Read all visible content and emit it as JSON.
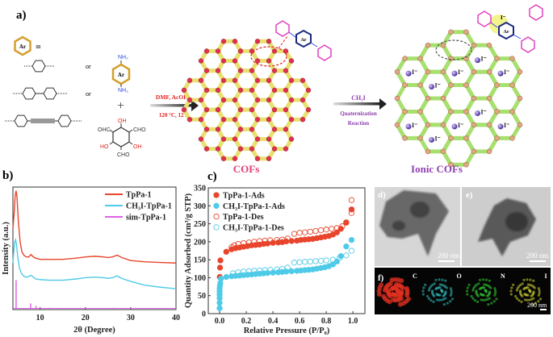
{
  "panels": {
    "a": "a)",
    "b": "b)",
    "c": "c)",
    "d": "d)",
    "e": "e)",
    "f": "f)"
  },
  "scheme": {
    "ar_label": "Ar",
    "equals": "=",
    "or_1": "or",
    "or_2": "or",
    "amine_top": "NH₂",
    "amine_bottom": "NH₂",
    "plus": "+",
    "aldehyde_groups": {
      "top": "OH",
      "left_top": "OHC",
      "right_top": "CHO",
      "left_bottom": "HO",
      "right_bottom": "OH",
      "bottom": "CHO"
    },
    "step1_reagent": "DMF, AcOH",
    "step1_conditions": "120 °C, 12 h",
    "step2_reagent": "CH₃I",
    "step2_line1": "Quaternization",
    "step2_line2": "Reaction",
    "cof_label": "COFs",
    "ionic_cof_label": "Ionic COFs",
    "iodide": "I⁻",
    "colors": {
      "ar": "#d4a030",
      "amine": "#3050e0",
      "hydroxyl": "#e02020",
      "cof_node": "#e03050",
      "cof_linker": "#e8e070",
      "ionic_node": "#e0a880",
      "ionic_linker": "#a8e070",
      "cof_title": "#e0407a",
      "ionic_title": "#9040b0",
      "iodide_dot": "#5030a0"
    }
  },
  "tem": {
    "scale_d": "200 nm",
    "scale_e": "200 nm",
    "scale_f": "200 nm",
    "elements": [
      "C",
      "O",
      "N",
      "I"
    ],
    "element_colors": [
      "#e03020",
      "#30b0b0",
      "#30c030",
      "#c0c030"
    ]
  },
  "chart_data": [
    {
      "type": "line",
      "title": "",
      "xlabel": "2θ (Degree)",
      "ylabel": "Intensity (a.u.)",
      "xlim": [
        4,
        40
      ],
      "ylim": [
        0,
        1
      ],
      "xticks": [
        "10",
        "20",
        "30",
        "40"
      ],
      "xtick_values": [
        10,
        20,
        30,
        40
      ],
      "legend": "top-right",
      "series": [
        {
          "name": "TpPa-1",
          "color": "#e8452c",
          "x": [
            4,
            4.3,
            4.5,
            4.7,
            4.9,
            5.2,
            5.6,
            6,
            6.5,
            7,
            7.5,
            8,
            8.5,
            9,
            10,
            12,
            15,
            18,
            20,
            22,
            24,
            25,
            26,
            27,
            28,
            30,
            33,
            36,
            40
          ],
          "y": [
            0.66,
            0.8,
            0.93,
            0.97,
            0.92,
            0.72,
            0.55,
            0.47,
            0.44,
            0.43,
            0.43,
            0.45,
            0.43,
            0.42,
            0.41,
            0.41,
            0.41,
            0.42,
            0.43,
            0.435,
            0.43,
            0.425,
            0.43,
            0.445,
            0.425,
            0.4,
            0.39,
            0.385,
            0.38
          ]
        },
        {
          "name": "CH₃I-TpPa-1",
          "color": "#4fcbe8",
          "x": [
            4,
            4.2,
            4.4,
            4.6,
            4.8,
            5.1,
            5.5,
            6,
            6.5,
            7,
            7.5,
            8,
            8.5,
            9,
            10,
            12,
            15,
            18,
            20,
            22,
            24,
            25,
            26,
            27,
            28,
            30,
            33,
            36,
            40
          ],
          "y": [
            0.38,
            0.48,
            0.55,
            0.57,
            0.53,
            0.42,
            0.33,
            0.29,
            0.27,
            0.265,
            0.27,
            0.28,
            0.265,
            0.25,
            0.245,
            0.24,
            0.24,
            0.25,
            0.26,
            0.265,
            0.26,
            0.255,
            0.26,
            0.275,
            0.255,
            0.23,
            0.2,
            0.185,
            0.17
          ]
        },
        {
          "name": "sim-TpPa-1",
          "color": "#e060e8",
          "style": "stick",
          "x": [
            4.7,
            7.9,
            9.1,
            12.0,
            26.3
          ],
          "y": [
            0.24,
            0.05,
            0.03,
            0.015,
            0.015
          ]
        }
      ]
    },
    {
      "type": "scatter",
      "title": "",
      "xlabel": "Relative Pressure (P/P₀)",
      "ylabel": "Quantity Adsorbed (cm³/g STP)",
      "xlim": [
        -0.085,
        1.09
      ],
      "ylim": [
        0,
        350
      ],
      "xticks": [
        "0.0",
        "0.2",
        "0.4",
        "0.6",
        "0.8",
        "1.0"
      ],
      "xtick_values": [
        0,
        0.2,
        0.4,
        0.6,
        0.8,
        1.0
      ],
      "yticks": [
        "0",
        "50",
        "100",
        "150",
        "200",
        "250",
        "300",
        "350"
      ],
      "ytick_values": [
        0,
        50,
        100,
        150,
        200,
        250,
        300,
        350
      ],
      "legend": "top-left",
      "series": [
        {
          "name": "TpPa-1-Ads",
          "color": "#e8452c",
          "filled": true,
          "x": [
            0.001,
            0.003,
            0.006,
            0.05,
            0.09,
            0.12,
            0.15,
            0.18,
            0.21,
            0.24,
            0.27,
            0.3,
            0.33,
            0.36,
            0.4,
            0.44,
            0.47,
            0.5,
            0.54,
            0.58,
            0.61,
            0.64,
            0.67,
            0.7,
            0.73,
            0.76,
            0.79,
            0.82,
            0.85,
            0.88,
            0.91,
            0.95,
            0.99
          ],
          "y": [
            102,
            128,
            148,
            172,
            179,
            182,
            184,
            186,
            188,
            190,
            191,
            192,
            194,
            195,
            197,
            198,
            199,
            201,
            202,
            203,
            205,
            206,
            207,
            208,
            210,
            212,
            214,
            216,
            220,
            226,
            236,
            253,
            290
          ]
        },
        {
          "name": "CH₃I-TpPa-1-Ads",
          "color": "#4fcbe8",
          "filled": true,
          "x": [
            0.0,
            0.0,
            0.0,
            0.0,
            0.0,
            0.0,
            0.002,
            0.005,
            0.01,
            0.05,
            0.09,
            0.12,
            0.15,
            0.18,
            0.21,
            0.24,
            0.27,
            0.3,
            0.33,
            0.36,
            0.4,
            0.44,
            0.47,
            0.5,
            0.54,
            0.58,
            0.61,
            0.64,
            0.67,
            0.7,
            0.73,
            0.76,
            0.79,
            0.82,
            0.85,
            0.88,
            0.91,
            0.95,
            0.99
          ],
          "y": [
            15,
            30,
            43,
            53,
            62,
            70,
            77,
            85,
            97,
            102,
            104,
            105,
            106,
            107,
            108,
            109,
            110,
            111,
            112,
            113,
            114,
            115,
            116,
            117,
            118,
            119,
            120,
            121,
            122,
            123,
            125,
            127,
            129,
            132,
            137,
            145,
            160,
            187,
            205
          ]
        },
        {
          "name": "TpPa-1-Des",
          "color": "#e8452c",
          "filled": false,
          "x": [
            0.99,
            0.99,
            0.95,
            0.92,
            0.88,
            0.84,
            0.8,
            0.76,
            0.72,
            0.68,
            0.64,
            0.6,
            0.56,
            0.51,
            0.47,
            0.43,
            0.38,
            0.34,
            0.3,
            0.26,
            0.22,
            0.18,
            0.14,
            0.11,
            0.09
          ],
          "y": [
            316,
            280,
            254,
            243,
            238,
            236,
            234,
            232,
            230,
            228,
            226,
            225,
            222,
            209,
            206,
            205,
            204,
            203,
            202,
            200,
            198,
            196,
            194,
            190,
            185
          ]
        },
        {
          "name": "CH₃I-TpPa-1-Des",
          "color": "#4fcbe8",
          "filled": false,
          "x": [
            0.99,
            0.95,
            0.9,
            0.85,
            0.8,
            0.76,
            0.72,
            0.68,
            0.64,
            0.6,
            0.56,
            0.51,
            0.47,
            0.43,
            0.38,
            0.34,
            0.3,
            0.26,
            0.22,
            0.18,
            0.14,
            0.1
          ],
          "y": [
            175,
            162,
            155,
            150,
            148,
            147,
            146,
            145,
            144,
            143,
            142,
            128,
            124,
            123,
            122,
            121,
            120,
            119,
            118,
            117,
            115,
            112
          ]
        }
      ]
    }
  ]
}
